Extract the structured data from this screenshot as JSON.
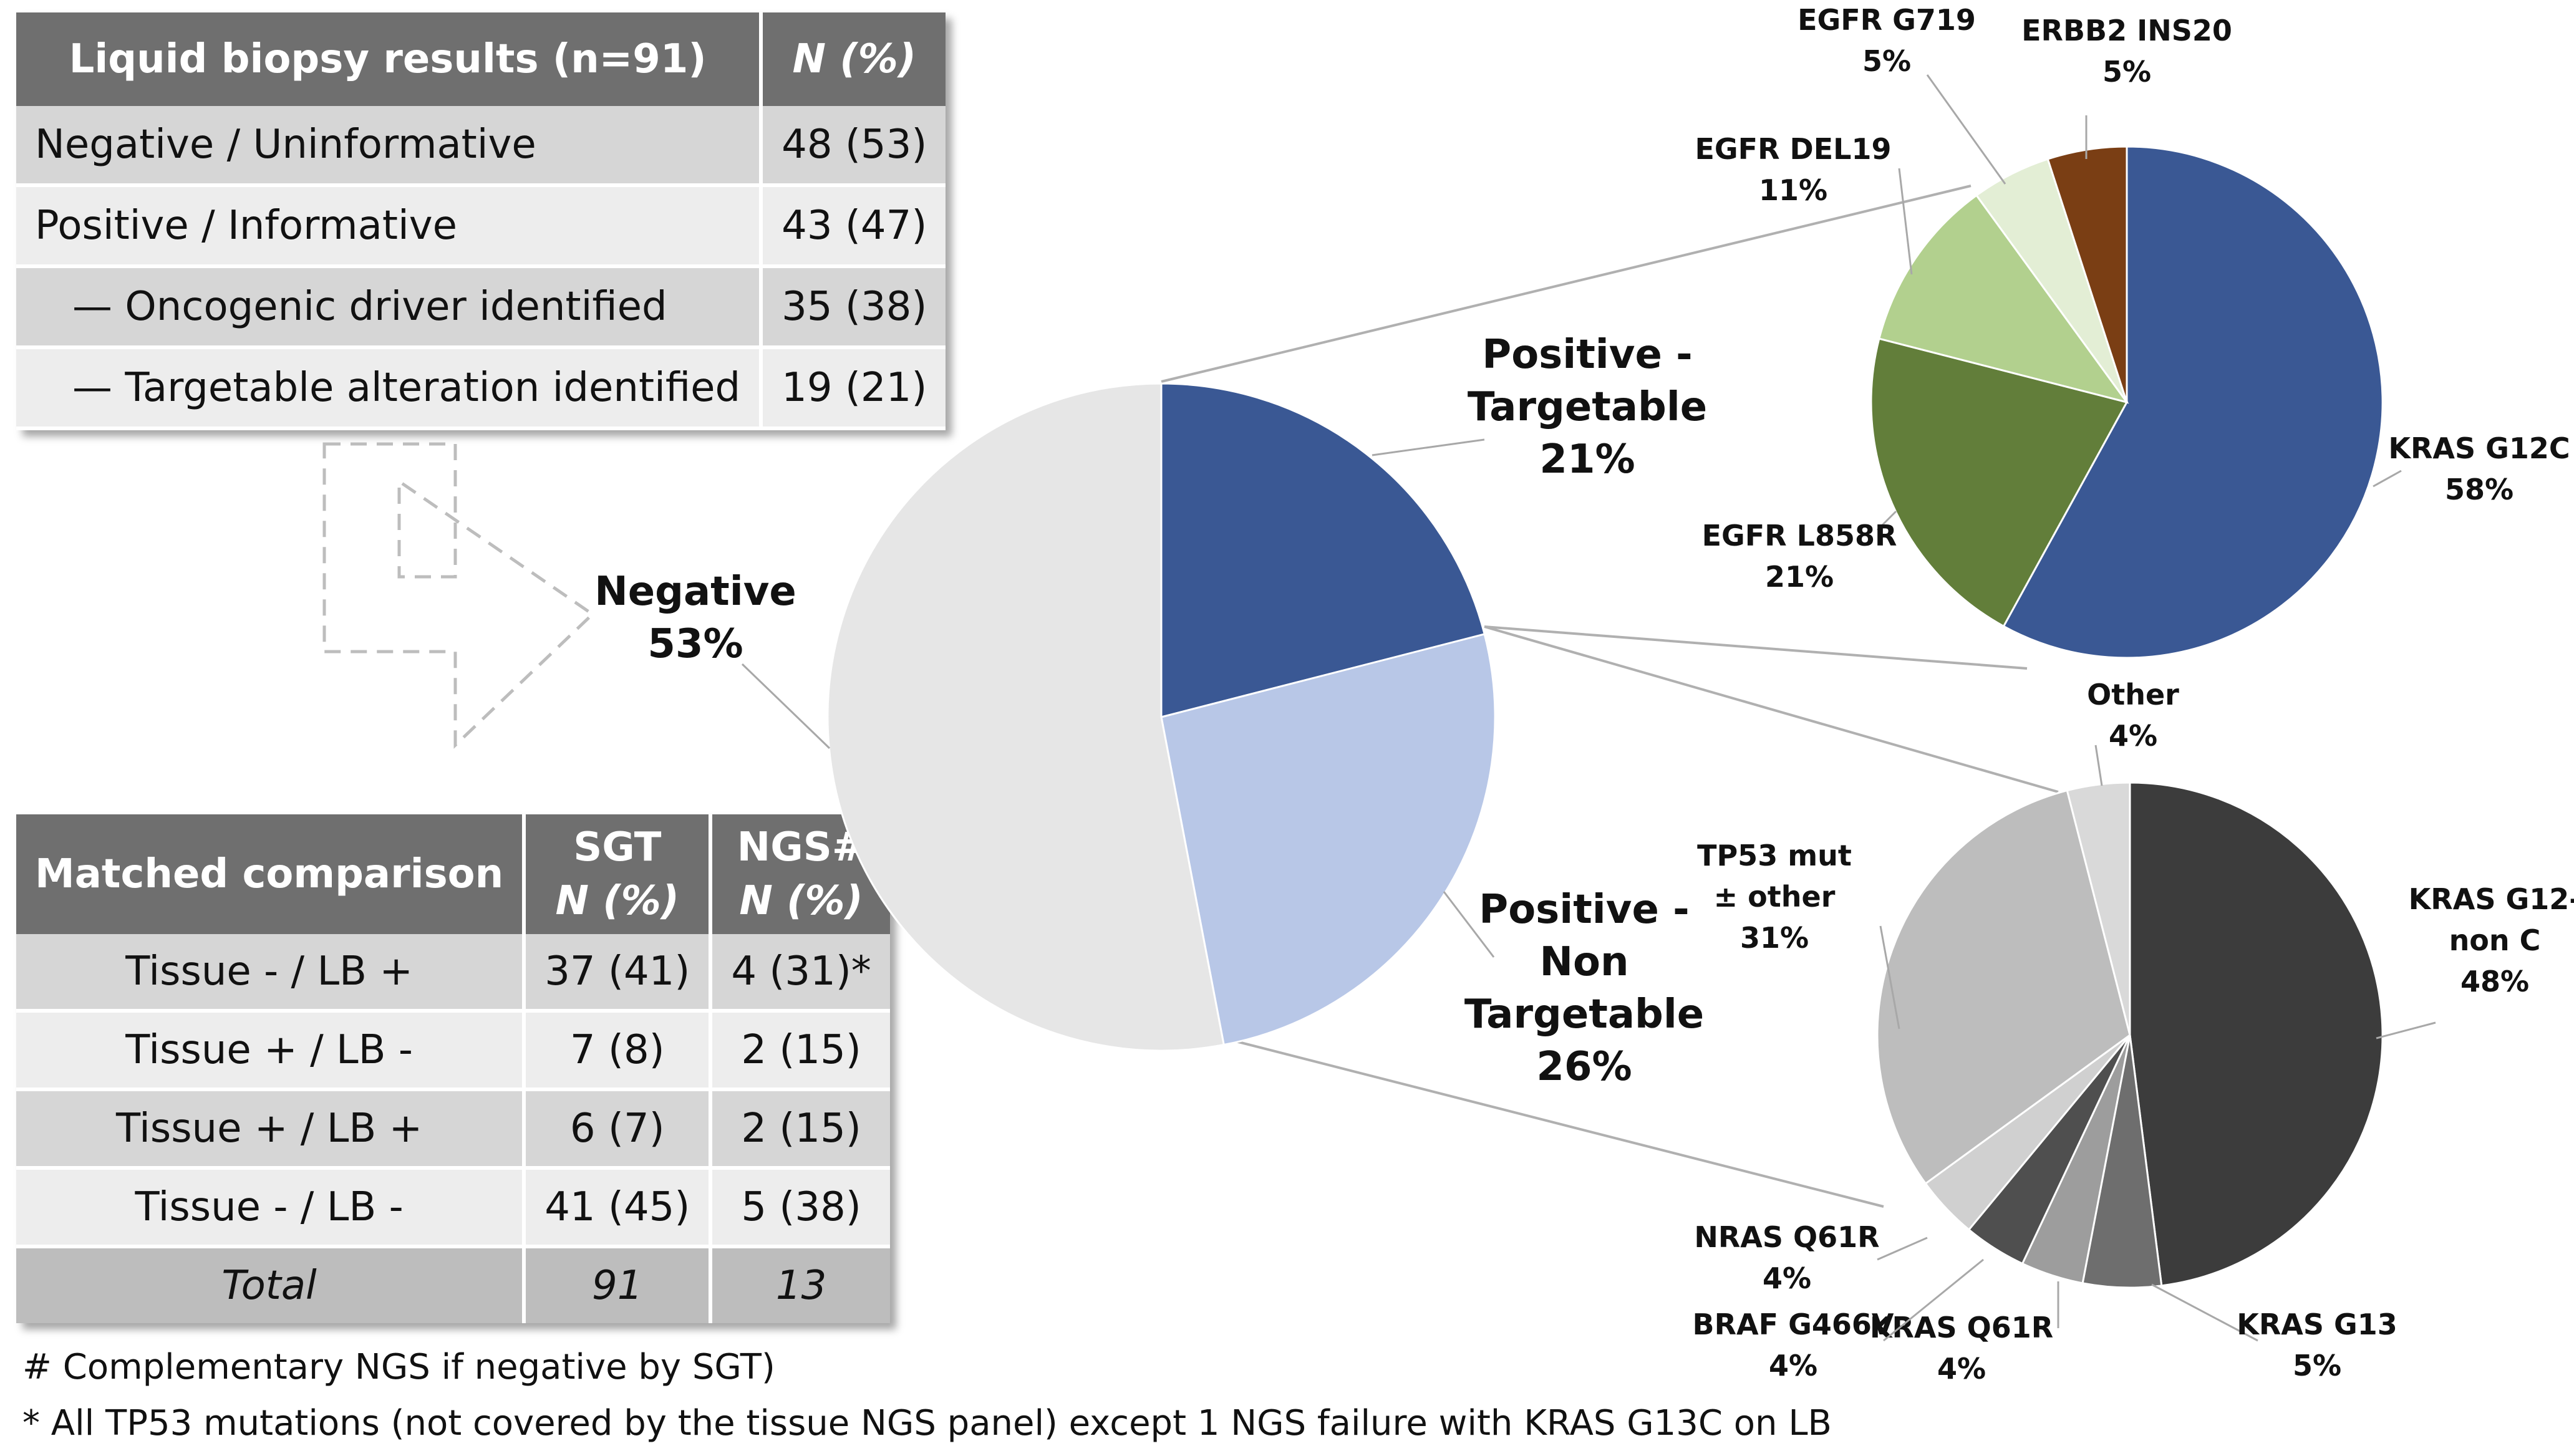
{
  "table1": {
    "header": {
      "label": "Liquid biopsy results (n=91)",
      "value": "N (%)"
    },
    "rows": [
      {
        "label": "Negative / Uninformative",
        "value": "48 (53)"
      },
      {
        "label": "Positive / Informative",
        "value": "43 (47)"
      },
      {
        "label": "—  Oncogenic driver identified",
        "value": "35 (38)"
      },
      {
        "label": "— Targetable alteration identified",
        "value": "19 (21)"
      }
    ]
  },
  "table2": {
    "header": {
      "label": "Matched comparison",
      "sgt": "SGT",
      "ngs": "NGS#",
      "n_pct": "N (%)"
    },
    "rows": [
      {
        "label": "Tissue -  / LB +",
        "sgt": "37 (41)",
        "ngs": "4 (31)*"
      },
      {
        "label": "Tissue + / LB -",
        "sgt": "7 (8)",
        "ngs": "2 (15)"
      },
      {
        "label": "Tissue +  / LB +",
        "sgt": "6 (7)",
        "ngs": "2 (15)"
      },
      {
        "label": "Tissue -  / LB -",
        "sgt": "41 (45)",
        "ngs": "5 (38)"
      }
    ],
    "total": {
      "label": "Total",
      "sgt": "91",
      "ngs": "13"
    }
  },
  "footnotes": [
    "# Complementary NGS if negative by SGT)",
    "* All TP53 mutations (not covered by the tissue NGS panel) except 1 NGS failure with KRAS G13C on LB"
  ],
  "chart_data": [
    {
      "type": "pie",
      "name": "main",
      "slices": [
        {
          "label": [
            "Positive -",
            "Targetable",
            "21%"
          ],
          "value": 21,
          "color": "#3a5894"
        },
        {
          "label": [
            "Positive -",
            "Non",
            "Targetable",
            "26%"
          ],
          "value": 26,
          "color": "#b8c7e7"
        },
        {
          "label": [
            "Negative",
            "53%"
          ],
          "value": 53,
          "color": "#e6e6e6"
        }
      ]
    },
    {
      "type": "pie",
      "name": "targetable",
      "slices": [
        {
          "label": [
            "KRAS G12C",
            "58%"
          ],
          "value": 58,
          "color": "#3a5894"
        },
        {
          "label": [
            "EGFR L858R",
            "21%"
          ],
          "value": 21,
          "color": "#627e3a"
        },
        {
          "label": [
            "EGFR DEL19",
            "11%"
          ],
          "value": 11,
          "color": "#b2d08e"
        },
        {
          "label": [
            "EGFR G719",
            "5%"
          ],
          "value": 5,
          "color": "#e3eed5"
        },
        {
          "label": [
            "ERBB2 INS20",
            "5%"
          ],
          "value": 5,
          "color": "#7a3e14"
        }
      ]
    },
    {
      "type": "pie",
      "name": "non_targetable",
      "slices": [
        {
          "label": [
            "KRAS G12-",
            "non C",
            "48%"
          ],
          "value": 48,
          "color": "#3c3c3c"
        },
        {
          "label": [
            "KRAS G13",
            "5%"
          ],
          "value": 5,
          "color": "#6e6e6e"
        },
        {
          "label": [
            "KRAS Q61R",
            "4%"
          ],
          "value": 4,
          "color": "#9d9d9d"
        },
        {
          "label": [
            "BRAF G466V",
            "4%"
          ],
          "value": 4,
          "color": "#4f4f4f"
        },
        {
          "label": [
            "NRAS Q61R",
            "4%"
          ],
          "value": 4,
          "color": "#d0d0d0"
        },
        {
          "label": [
            "TP53 mut",
            "± other",
            "31%"
          ],
          "value": 31,
          "color": "#bdbdbd"
        },
        {
          "label": [
            "Other",
            "4%"
          ],
          "value": 4,
          "color": "#d9d9d9"
        }
      ]
    }
  ]
}
